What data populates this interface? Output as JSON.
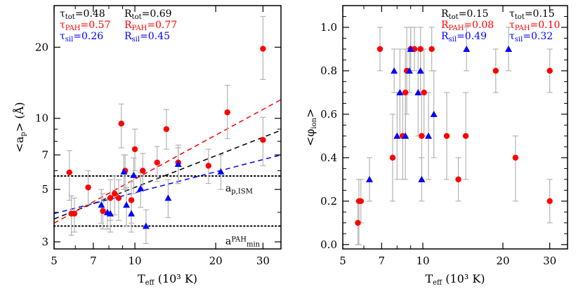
{
  "colors": {
    "total": "#000000",
    "pah": "#ff0000",
    "sil": "#0000ff",
    "errorbar": "#b4b4b4"
  },
  "chart_data": [
    {
      "type": "scatter",
      "xscale": "log",
      "yscale": "log",
      "xlim": [
        5,
        35
      ],
      "ylim": [
        2.8,
        30
      ],
      "xticks": [
        5,
        7,
        10,
        20,
        30
      ],
      "xtick_labels": [
        "5",
        "7",
        "10",
        "20",
        "30"
      ],
      "yticks": [
        3,
        5,
        7,
        10,
        20
      ],
      "ytick_labels": [
        "3",
        "5",
        "7",
        "10",
        "20"
      ],
      "xlabel": {
        "main": "T",
        "sub": "eff",
        "rest": " (10³ K)"
      },
      "ylabel": {
        "main": "<a",
        "sub": "p",
        "rest": "> (Å)"
      },
      "stats": [
        {
          "tau_main": "τ",
          "tau_sub": "tot",
          "tau_val": "=0.48",
          "r_main": "R",
          "r_sub": "tot",
          "r_val": "=0.69",
          "color": "#000000"
        },
        {
          "tau_main": "τ",
          "tau_sub": "PAH",
          "tau_val": "=0.57",
          "r_main": "R",
          "r_sub": "PAH",
          "r_val": "=0.77",
          "color": "#ff0000"
        },
        {
          "tau_main": "τ",
          "tau_sub": "sil",
          "tau_val": "=0.26",
          "r_main": "R",
          "r_sub": "sil",
          "r_val": "=0.45",
          "color": "#0000ff"
        }
      ],
      "ref_lines": [
        {
          "y": 5.7,
          "label_main": "a",
          "label_sub": "p,ISM",
          "label_sup": ""
        },
        {
          "y": 3.5,
          "label_main": "a",
          "label_sub": "min",
          "label_sup": "PAH"
        }
      ],
      "fits": [
        {
          "name": "total",
          "x": [
            5,
            35
          ],
          "y": [
            3.75,
            8.9
          ],
          "color": "#000000"
        },
        {
          "name": "pah",
          "x": [
            5,
            35
          ],
          "y": [
            3.6,
            12.0
          ],
          "color": "#ff0000"
        },
        {
          "name": "sil",
          "x": [
            5,
            35
          ],
          "y": [
            3.95,
            7.0
          ],
          "color": "#0000ff"
        }
      ],
      "series": [
        {
          "name": "PAH",
          "marker": "circle",
          "color": "#ff0000",
          "points": [
            {
              "x": 5.7,
              "y": 5.9,
              "lo": 4.5,
              "hi": 7.3
            },
            {
              "x": 5.8,
              "y": 3.95,
              "lo": 3.2,
              "hi": 4.7
            },
            {
              "x": 5.95,
              "y": 3.95,
              "lo": 3.3,
              "hi": 4.6
            },
            {
              "x": 6.7,
              "y": 5.1,
              "lo": 4.3,
              "hi": 6.0
            },
            {
              "x": 7.6,
              "y": 4.05,
              "lo": 3.4,
              "hi": 4.8
            },
            {
              "x": 8.1,
              "y": 4.6,
              "lo": 3.7,
              "hi": 5.5
            },
            {
              "x": 8.4,
              "y": 4.8,
              "lo": 3.9,
              "hi": 5.7
            },
            {
              "x": 8.7,
              "y": 4.6,
              "lo": 3.7,
              "hi": 5.5
            },
            {
              "x": 8.9,
              "y": 9.5,
              "lo": 7.5,
              "hi": 11.5
            },
            {
              "x": 9.2,
              "y": 6.0,
              "lo": 5.0,
              "hi": 7.0
            },
            {
              "x": 9.7,
              "y": 4.5,
              "lo": 3.6,
              "hi": 5.4
            },
            {
              "x": 10.0,
              "y": 7.4,
              "lo": 6.0,
              "hi": 9.0
            },
            {
              "x": 10.7,
              "y": 6.0,
              "lo": 5.0,
              "hi": 7.1
            },
            {
              "x": 12.1,
              "y": 6.5,
              "lo": 5.4,
              "hi": 7.6
            },
            {
              "x": 13.1,
              "y": 9.0,
              "lo": 7.4,
              "hi": 10.9
            },
            {
              "x": 14.5,
              "y": 6.5,
              "lo": 5.3,
              "hi": 7.7
            },
            {
              "x": 18.8,
              "y": 6.3,
              "lo": 5.3,
              "hi": 7.4
            },
            {
              "x": 22.1,
              "y": 10.6,
              "lo": 8.2,
              "hi": 13.8
            },
            {
              "x": 30.0,
              "y": 8.1,
              "lo": 6.3,
              "hi": 10.1
            },
            {
              "x": 30.0,
              "y": 19.7,
              "lo": 14.6,
              "hi": 27.0
            }
          ]
        },
        {
          "name": "silicate",
          "marker": "triangle",
          "color": "#0000ff",
          "points": [
            {
              "x": 7.5,
              "y": 4.3,
              "lo": 3.6,
              "hi": 5.0
            },
            {
              "x": 7.9,
              "y": 4.0,
              "lo": 3.4,
              "hi": 4.6
            },
            {
              "x": 8.1,
              "y": 3.95,
              "lo": 3.3,
              "hi": 4.6
            },
            {
              "x": 9.1,
              "y": 5.95,
              "lo": 5.0,
              "hi": 7.0
            },
            {
              "x": 9.3,
              "y": 4.3,
              "lo": 3.5,
              "hi": 5.1
            },
            {
              "x": 9.7,
              "y": 3.95,
              "lo": 3.3,
              "hi": 4.6
            },
            {
              "x": 9.9,
              "y": 5.75,
              "lo": 4.8,
              "hi": 6.8
            },
            {
              "x": 10.5,
              "y": 5.05,
              "lo": 4.2,
              "hi": 5.9
            },
            {
              "x": 11.0,
              "y": 3.5,
              "lo": 2.95,
              "hi": 4.1
            },
            {
              "x": 13.3,
              "y": 4.6,
              "lo": 3.8,
              "hi": 5.5
            },
            {
              "x": 14.5,
              "y": 6.4,
              "lo": 5.3,
              "hi": 7.5
            },
            {
              "x": 20.9,
              "y": 5.95,
              "lo": 5.0,
              "hi": 7.0
            }
          ]
        }
      ]
    },
    {
      "type": "scatter",
      "xscale": "log",
      "yscale": "linear",
      "xlim": [
        5,
        35
      ],
      "ylim": [
        -0.02,
        1.1
      ],
      "xticks": [
        5,
        7,
        10,
        20,
        30
      ],
      "xtick_labels": [
        "5",
        "7",
        "10",
        "20",
        "30"
      ],
      "yticks": [
        0.0,
        0.2,
        0.4,
        0.6,
        0.8,
        1.0
      ],
      "ytick_labels": [
        "0.0",
        "0.2",
        "0.4",
        "0.6",
        "0.8",
        "1.0"
      ],
      "xlabel": {
        "main": "T",
        "sub": "eff",
        "rest": " (10³ K)"
      },
      "ylabel": {
        "main": "<φ",
        "sub": "ion",
        "rest": ">"
      },
      "stats": [
        {
          "tau_main": "τ",
          "tau_sub": "tot",
          "tau_val": "=0.15",
          "r_main": "R",
          "r_sub": "tot",
          "r_val": "=0.15",
          "color": "#000000"
        },
        {
          "tau_main": "τ",
          "tau_sub": "PAH",
          "tau_val": "=0.10",
          "r_main": "R",
          "r_sub": "PAH",
          "r_val": "=0.08",
          "color": "#ff0000"
        },
        {
          "tau_main": "τ",
          "tau_sub": "sil",
          "tau_val": "=0.32",
          "r_main": "R",
          "r_sub": "sil",
          "r_val": "=0.49",
          "color": "#0000ff"
        }
      ],
      "ref_lines": [],
      "fits": [],
      "series": [
        {
          "name": "PAH",
          "marker": "circle",
          "color": "#ff0000",
          "points": [
            {
              "x": 5.7,
              "y": 0.1,
              "lo": 0.0,
              "hi": 0.2
            },
            {
              "x": 5.75,
              "y": 0.2,
              "lo": 0.0,
              "hi": 0.3
            },
            {
              "x": 5.85,
              "y": 0.2,
              "lo": 0.1,
              "hi": 0.3
            },
            {
              "x": 6.9,
              "y": 0.9,
              "lo": 0.8,
              "hi": 1.0
            },
            {
              "x": 7.7,
              "y": 0.4,
              "lo": 0.2,
              "hi": 0.6
            },
            {
              "x": 8.4,
              "y": 0.5,
              "lo": 0.3,
              "hi": 0.7
            },
            {
              "x": 8.6,
              "y": 0.7,
              "lo": 0.5,
              "hi": 0.9
            },
            {
              "x": 8.7,
              "y": 0.8,
              "lo": 0.6,
              "hi": 1.0
            },
            {
              "x": 9.0,
              "y": 0.9,
              "lo": 0.8,
              "hi": 1.0
            },
            {
              "x": 9.3,
              "y": 0.9,
              "lo": 0.8,
              "hi": 1.0
            },
            {
              "x": 9.8,
              "y": 0.9,
              "lo": 0.8,
              "hi": 1.0
            },
            {
              "x": 9.9,
              "y": 0.5,
              "lo": 0.3,
              "hi": 0.7
            },
            {
              "x": 10.1,
              "y": 0.7,
              "lo": 0.5,
              "hi": 0.9
            },
            {
              "x": 10.8,
              "y": 0.9,
              "lo": 0.8,
              "hi": 1.0
            },
            {
              "x": 12.3,
              "y": 0.5,
              "lo": 0.3,
              "hi": 0.7
            },
            {
              "x": 13.6,
              "y": 0.3,
              "lo": 0.2,
              "hi": 0.4
            },
            {
              "x": 14.5,
              "y": 0.5,
              "lo": 0.3,
              "hi": 0.7
            },
            {
              "x": 18.8,
              "y": 0.8,
              "lo": 0.7,
              "hi": 0.9
            },
            {
              "x": 22.3,
              "y": 0.4,
              "lo": 0.2,
              "hi": 0.5
            },
            {
              "x": 30.0,
              "y": 0.2,
              "lo": 0.1,
              "hi": 0.3
            },
            {
              "x": 30.0,
              "y": 0.8,
              "lo": 0.7,
              "hi": 0.9
            }
          ]
        },
        {
          "name": "silicate",
          "marker": "triangle",
          "color": "#0000ff",
          "points": [
            {
              "x": 6.3,
              "y": 0.3,
              "lo": 0.2,
              "hi": 0.4
            },
            {
              "x": 7.8,
              "y": 0.8,
              "lo": 0.7,
              "hi": 0.9
            },
            {
              "x": 8.0,
              "y": 0.5,
              "lo": 0.3,
              "hi": 0.7
            },
            {
              "x": 8.2,
              "y": 0.7,
              "lo": 0.5,
              "hi": 0.9
            },
            {
              "x": 8.6,
              "y": 0.5,
              "lo": 0.3,
              "hi": 0.7
            },
            {
              "x": 8.9,
              "y": 0.8,
              "lo": 0.7,
              "hi": 0.9
            },
            {
              "x": 9.0,
              "y": 0.9,
              "lo": 0.8,
              "hi": 1.0
            },
            {
              "x": 9.6,
              "y": 0.7,
              "lo": 0.5,
              "hi": 0.9
            },
            {
              "x": 9.8,
              "y": 0.8,
              "lo": 0.7,
              "hi": 0.9
            },
            {
              "x": 9.9,
              "y": 0.3,
              "lo": 0.2,
              "hi": 0.4
            },
            {
              "x": 10.5,
              "y": 0.5,
              "lo": 0.3,
              "hi": 0.7
            },
            {
              "x": 11.0,
              "y": 0.6,
              "lo": 0.4,
              "hi": 0.8
            },
            {
              "x": 14.6,
              "y": 0.9,
              "lo": 0.8,
              "hi": 1.0
            },
            {
              "x": 21.0,
              "y": 0.9,
              "lo": 0.8,
              "hi": 1.0
            }
          ]
        }
      ]
    }
  ]
}
